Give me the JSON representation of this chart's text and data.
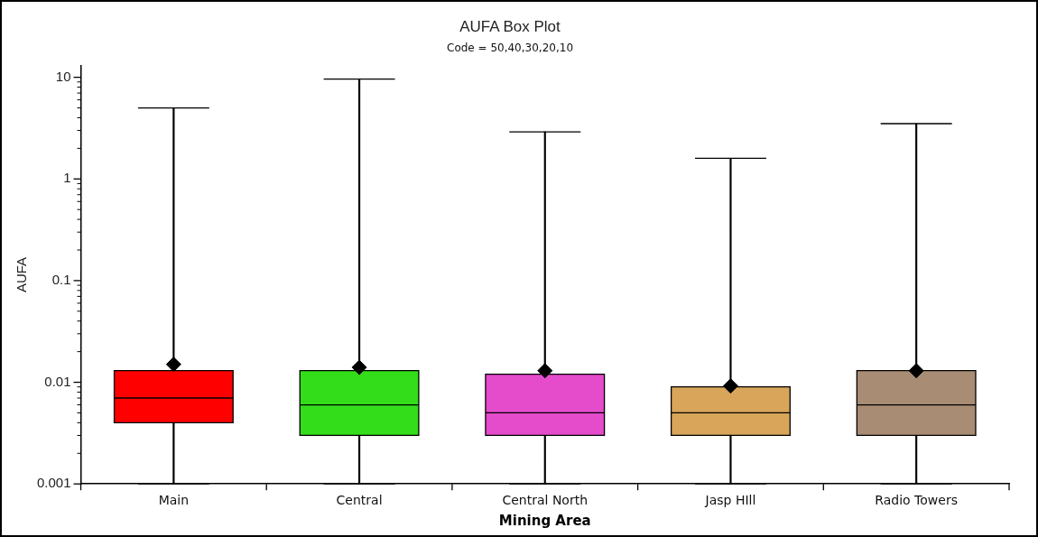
{
  "chart_data": {
    "type": "box",
    "title": "AUFA Box Plot",
    "subtitle": "Code = 50,40,30,20,10",
    "xlabel": "Mining Area",
    "ylabel": "AUFA",
    "categories": [
      "Main",
      "Central",
      "Central North",
      "Jasp HIll",
      "Radio Towers"
    ],
    "colors": [
      "#ff0000",
      "#33dd1a",
      "#e44ccc",
      "#d8a55a",
      "#a88c74"
    ],
    "boxes": [
      {
        "low": 0.001,
        "q1": 0.004,
        "median": 0.007,
        "q3": 0.013,
        "high": 5,
        "mean": 0.015
      },
      {
        "low": 0.001,
        "q1": 0.003,
        "median": 0.006,
        "q3": 0.013,
        "high": 9.6,
        "mean": 0.014
      },
      {
        "low": 0.001,
        "q1": 0.003,
        "median": 0.005,
        "q3": 0.012,
        "high": 2.9,
        "mean": 0.013
      },
      {
        "low": 0.001,
        "q1": 0.003,
        "median": 0.005,
        "q3": 0.009,
        "high": 1.6,
        "mean": 0.0092
      },
      {
        "low": 0.001,
        "q1": 0.003,
        "median": 0.006,
        "q3": 0.013,
        "high": 3.5,
        "mean": 0.013
      }
    ],
    "ylim": [
      0.001,
      13
    ],
    "yticks": [
      0.001,
      0.01,
      0.1,
      1,
      10
    ],
    "log": true,
    "marker": "diamond"
  }
}
